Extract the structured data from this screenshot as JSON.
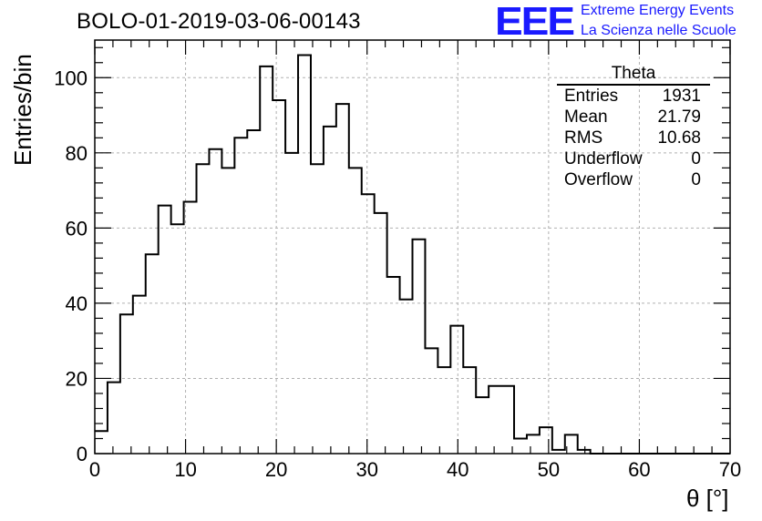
{
  "header": {
    "title": "BOLO-01-2019-03-06-00143",
    "logo_text": "EEE",
    "logo_line1": "Extreme Energy Events",
    "logo_line2": "La Scienza nelle Scuole"
  },
  "stats_box": {
    "title": "Theta",
    "rows": [
      {
        "label": "Entries",
        "value": "1931"
      },
      {
        "label": "Mean",
        "value": "21.79"
      },
      {
        "label": "RMS",
        "value": "10.68"
      },
      {
        "label": "Underflow",
        "value": "0"
      },
      {
        "label": "Overflow",
        "value": "0"
      }
    ]
  },
  "colors": {
    "logo": "#1a1aff",
    "line": "#000000",
    "grid": "#b0b0b0"
  },
  "chart_data": {
    "type": "bar",
    "style": "step-histogram",
    "xlabel": "θ [°]",
    "ylabel": "Entries/bin",
    "xlim": [
      0,
      70
    ],
    "ylim": [
      0,
      110
    ],
    "grid": true,
    "bin_width": 1.4,
    "x_ticks": [
      0,
      10,
      20,
      30,
      40,
      50,
      60,
      70
    ],
    "y_ticks": [
      0,
      20,
      40,
      60,
      80,
      100
    ],
    "values": [
      6,
      19,
      37,
      42,
      53,
      66,
      61,
      67,
      77,
      81,
      76,
      84,
      86,
      103,
      94,
      80,
      106,
      77,
      87,
      93,
      76,
      69,
      64,
      47,
      41,
      57,
      28,
      23,
      34,
      23,
      15,
      18,
      18,
      4,
      5,
      7,
      1,
      5,
      1,
      0,
      0,
      0,
      0,
      0,
      0,
      0,
      0,
      0,
      0,
      0
    ]
  }
}
